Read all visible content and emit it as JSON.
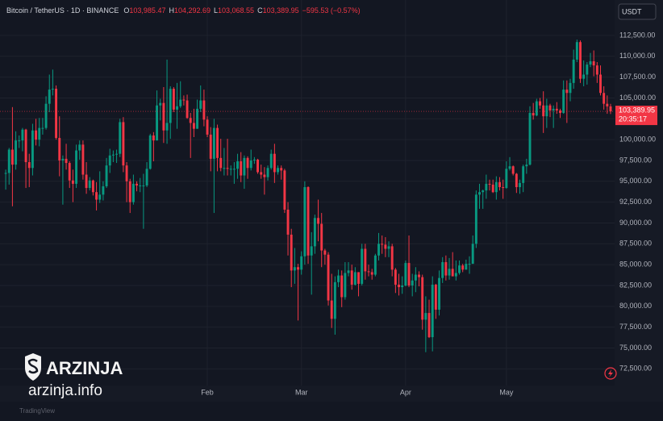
{
  "chart_data": {
    "type": "candlestick",
    "title": "Bitcoin / TetherUS · 1D · BINANCE",
    "ohlc_legend": [
      {
        "key": "O",
        "value": "103,985.47"
      },
      {
        "key": "H",
        "value": "104,292.69"
      },
      {
        "key": "L",
        "value": "103,068.55"
      },
      {
        "key": "C",
        "value": "103,389.95"
      }
    ],
    "change_label": "−595.53 (−0.57%)",
    "currency": "USDT",
    "last_price": {
      "label": "103,389.95",
      "countdown": "20:35:17"
    },
    "watermark": {
      "brand": "ARZINJA",
      "site": "arzinja.info"
    },
    "footer": "TradingView",
    "up_color": "#089981",
    "down_color": "#f23645",
    "grid": true,
    "open": [
      95900,
      96000,
      98800,
      97000,
      99900,
      99900,
      101200,
      97300,
      96600,
      101100,
      100000,
      101400,
      101400,
      104300,
      106000,
      106100,
      100200,
      97500,
      97700,
      97200,
      95100,
      94700,
      98700,
      99400,
      95800,
      94200,
      95100,
      93700,
      92800,
      93400,
      94400,
      96900,
      98100,
      98200,
      98300,
      102100,
      96900,
      95000,
      92500,
      94700,
      94500,
      94500,
      94500,
      96500,
      100500,
      99900,
      104100,
      104400,
      101100,
      102000,
      106100,
      103600,
      104000,
      104800,
      104700,
      102600,
      102000,
      101300,
      103700,
      104700,
      102400,
      100600,
      97700,
      101400,
      97800,
      96600,
      96600,
      96500,
      96500,
      96500,
      97400,
      95700,
      97800,
      96600,
      97500,
      97600,
      96100,
      95800,
      95500,
      96600,
      98300,
      96100,
      96600,
      96300,
      91600,
      88600,
      84300,
      84700,
      84400,
      86000,
      94300,
      86100,
      87200,
      90600,
      89900,
      86700,
      86200,
      80700,
      78500,
      82900,
      83700,
      81100,
      84000,
      84300,
      82600,
      84100,
      82700,
      86900,
      84200,
      84100,
      83800,
      86100,
      87500,
      87400,
      86900,
      87200,
      84400,
      82600,
      82300,
      82500,
      85200,
      82500,
      83100,
      83800,
      83500,
      78400,
      79200,
      76300,
      82600,
      79600,
      83400,
      85300,
      83700,
      84500,
      83600,
      84000,
      84900,
      84400,
      85100,
      85100,
      87500,
      93400,
      93700,
      93900,
      94700,
      94600,
      93700,
      94900,
      94300,
      94200,
      96500,
      96800,
      95900,
      94300,
      94800,
      96800,
      97000,
      103200,
      102900,
      104600,
      104100,
      102800,
      104100,
      103500,
      103700,
      103500,
      103200,
      106000,
      105600,
      106800,
      109600,
      111700,
      107300,
      107800,
      109000,
      109400,
      108900,
      107800,
      105600,
      104300,
      103985.47
    ],
    "high": [
      96400,
      99000,
      103900,
      101000,
      100500,
      101400,
      101300,
      98300,
      101900,
      102500,
      102600,
      102600,
      105200,
      107800,
      108400,
      106500,
      102800,
      98100,
      99500,
      97400,
      96400,
      99400,
      99900,
      99900,
      97300,
      95500,
      95200,
      94900,
      96200,
      95000,
      97800,
      98900,
      98700,
      98800,
      102500,
      102700,
      97300,
      95300,
      95800,
      95000,
      95400,
      95900,
      97300,
      100700,
      100900,
      105900,
      104900,
      106300,
      109600,
      106400,
      106300,
      106800,
      107000,
      105300,
      105400,
      103200,
      103700,
      104800,
      106500,
      106000,
      102800,
      101500,
      102500,
      101800,
      100100,
      99000,
      100100,
      96900,
      97300,
      98300,
      98500,
      98100,
      98000,
      98800,
      97900,
      97700,
      97000,
      96700,
      96900,
      98800,
      99500,
      96900,
      96900,
      96500,
      92500,
      89300,
      87000,
      85100,
      86600,
      95000,
      94400,
      88900,
      91000,
      92800,
      91200,
      86900,
      86500,
      83900,
      83600,
      84400,
      84300,
      85300,
      85300,
      85000,
      84700,
      84100,
      87500,
      87500,
      85000,
      84500,
      86300,
      88800,
      88500,
      88300,
      87800,
      87500,
      84600,
      83900,
      83600,
      85500,
      88500,
      83900,
      84700,
      84200,
      83800,
      81200,
      80800,
      83600,
      82700,
      84300,
      85900,
      86100,
      85800,
      86500,
      85500,
      85500,
      85100,
      85600,
      86000,
      88500,
      93900,
      94700,
      94000,
      95800,
      95200,
      95200,
      95600,
      95500,
      95200,
      97400,
      97900,
      96900,
      96000,
      95200,
      97000,
      97700,
      104000,
      104400,
      104900,
      105000,
      105800,
      104900,
      104300,
      104100,
      104500,
      103700,
      107100,
      107100,
      107300,
      110800,
      112000,
      111900,
      109500,
      109300,
      110400,
      110700,
      109300,
      108900,
      106400,
      105300,
      104292.69
    ],
    "low": [
      94000,
      94600,
      92000,
      96400,
      99000,
      98600,
      94200,
      94300,
      95700,
      99300,
      99200,
      100600,
      101200,
      103300,
      105300,
      100000,
      95600,
      92200,
      96400,
      94200,
      92500,
      94200,
      97600,
      95200,
      93500,
      93900,
      93300,
      91500,
      92400,
      92700,
      94200,
      96000,
      97300,
      97200,
      97900,
      96100,
      92500,
      91200,
      92200,
      93800,
      93700,
      89300,
      94300,
      96400,
      97400,
      99900,
      102300,
      99600,
      99500,
      100100,
      103300,
      101300,
      103800,
      104100,
      102500,
      97800,
      100300,
      101300,
      103300,
      101600,
      100300,
      96200,
      91200,
      96200,
      96200,
      95700,
      95700,
      95700,
      94700,
      95300,
      94900,
      94100,
      95300,
      96300,
      97100,
      95900,
      95300,
      93400,
      95100,
      96400,
      94800,
      95800,
      95200,
      91200,
      86100,
      82300,
      82700,
      78300,
      83800,
      85000,
      85100,
      81400,
      86300,
      87800,
      84700,
      85000,
      80100,
      77400,
      76600,
      82300,
      79900,
      80800,
      83600,
      82000,
      82500,
      81200,
      82500,
      83200,
      83600,
      83200,
      83600,
      85500,
      86300,
      85900,
      85900,
      83600,
      81600,
      81300,
      81500,
      82400,
      82300,
      81200,
      81700,
      82400,
      77200,
      74500,
      76200,
      74600,
      78500,
      78900,
      82800,
      83100,
      83200,
      83600,
      83100,
      83800,
      84100,
      84400,
      83900,
      85100,
      87000,
      91700,
      91700,
      92900,
      93900,
      93600,
      92800,
      93900,
      92900,
      94100,
      96300,
      95700,
      93600,
      93500,
      93700,
      95900,
      96900,
      102400,
      102800,
      103700,
      100800,
      101400,
      102700,
      101400,
      103100,
      102600,
      103100,
      102000,
      104600,
      106100,
      109300,
      106800,
      106400,
      106600,
      108700,
      107600,
      106800,
      105300,
      103600,
      103100,
      103068.55
    ],
    "close": [
      96000,
      98800,
      97000,
      99900,
      99900,
      101200,
      97300,
      96600,
      101100,
      100000,
      101400,
      101400,
      104300,
      106000,
      106100,
      100200,
      97500,
      97700,
      97200,
      95100,
      94700,
      98700,
      99400,
      95800,
      94200,
      95100,
      93700,
      92800,
      93400,
      94400,
      96900,
      98100,
      98200,
      98300,
      102100,
      96900,
      95000,
      92500,
      94700,
      94500,
      94500,
      94500,
      96500,
      100500,
      99900,
      104100,
      104400,
      101100,
      102000,
      106100,
      103600,
      104000,
      104800,
      104700,
      102600,
      102000,
      101300,
      103700,
      104700,
      102400,
      100600,
      97700,
      101400,
      97800,
      96600,
      96600,
      96500,
      96500,
      96500,
      97400,
      95700,
      97800,
      96600,
      97500,
      97600,
      96100,
      95800,
      95500,
      96600,
      98300,
      96100,
      96600,
      96300,
      91600,
      88600,
      84300,
      84700,
      84400,
      86000,
      94300,
      86100,
      87200,
      90600,
      89900,
      86700,
      86200,
      80700,
      78500,
      82900,
      83700,
      81100,
      84000,
      84300,
      82600,
      84100,
      82700,
      86900,
      84200,
      84100,
      83800,
      86100,
      87500,
      87400,
      86900,
      87200,
      84400,
      82600,
      82300,
      82500,
      85200,
      82500,
      83100,
      83800,
      83500,
      78400,
      79200,
      76300,
      82600,
      79600,
      83400,
      85300,
      83700,
      84500,
      83600,
      84000,
      84900,
      84400,
      85100,
      85100,
      87500,
      93400,
      93700,
      93900,
      94700,
      94600,
      93700,
      94900,
      94300,
      94200,
      96500,
      96800,
      95900,
      94300,
      94800,
      96800,
      97000,
      103200,
      102900,
      104600,
      104100,
      102800,
      104100,
      103500,
      103700,
      103500,
      103200,
      106000,
      105600,
      106800,
      109600,
      111700,
      107300,
      107800,
      109000,
      109400,
      108900,
      107800,
      105600,
      104300,
      103985.47,
      103389.95
    ],
    "xlim": [
      -1.7,
      181.2
    ],
    "xticks": [
      {
        "value": 60,
        "label": "Feb"
      },
      {
        "value": 88,
        "label": "Mar"
      },
      {
        "value": 119,
        "label": "Apr"
      },
      {
        "value": 149,
        "label": "May"
      }
    ],
    "ylim": [
      70500,
      116750
    ],
    "yticks": [
      {
        "value": 72500,
        "label": "72,500.00"
      },
      {
        "value": 75000,
        "label": "75,000.00"
      },
      {
        "value": 77500,
        "label": "77,500.00"
      },
      {
        "value": 80000,
        "label": "80,000.00"
      },
      {
        "value": 82500,
        "label": "82,500.00"
      },
      {
        "value": 85000,
        "label": "85,000.00"
      },
      {
        "value": 87500,
        "label": "87,500.00"
      },
      {
        "value": 90000,
        "label": "90,000.00"
      },
      {
        "value": 92500,
        "label": "92,500.00"
      },
      {
        "value": 95000,
        "label": "95,000.00"
      },
      {
        "value": 97500,
        "label": "97,500.00"
      },
      {
        "value": 100000,
        "label": "100,000.00"
      },
      {
        "value": 102500,
        "label": "102,500.00"
      },
      {
        "value": 105000,
        "label": "105,000.00"
      },
      {
        "value": 107500,
        "label": "107,500.00"
      },
      {
        "value": 110000,
        "label": "110,000.00"
      },
      {
        "value": 112500,
        "label": "112,500.00"
      }
    ]
  }
}
